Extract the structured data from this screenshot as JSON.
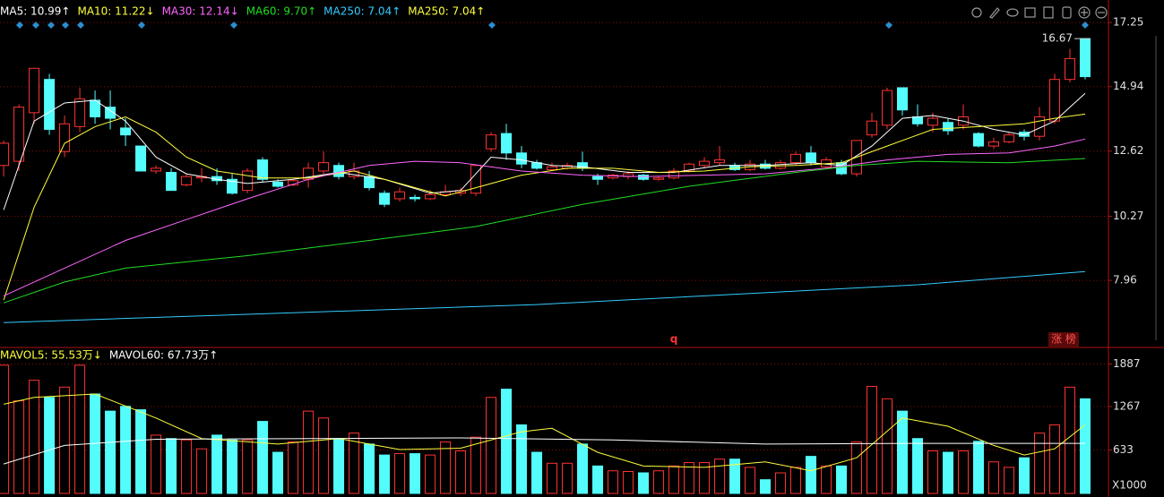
{
  "chart_data": [
    {
      "type": "candlestick",
      "up_color": "#ff3232",
      "down_color": "#54fcfc",
      "grid": true,
      "xlim": [
        -0.24,
        72.53
      ],
      "ylim": [
        5.64,
        17.48
      ],
      "yticks": [
        17.25,
        14.94,
        12.62,
        10.27,
        7.96
      ],
      "open": [
        12.1,
        12.25,
        14.0,
        15.2,
        12.6,
        13.5,
        14.45,
        14.2,
        13.45,
        12.8,
        11.9,
        11.85,
        11.4,
        11.65,
        11.7,
        11.6,
        11.2,
        12.3,
        11.5,
        11.4,
        11.6,
        11.9,
        12.1,
        11.7,
        11.7,
        11.1,
        10.9,
        10.95,
        10.9,
        11.05,
        11.1,
        11.1,
        12.7,
        13.25,
        12.55,
        12.2,
        11.95,
        12.0,
        12.2,
        11.7,
        11.65,
        11.7,
        11.75,
        11.6,
        11.65,
        11.9,
        12.1,
        12.2,
        12.1,
        11.95,
        12.15,
        12.0,
        12.2,
        12.55,
        12.05,
        12.2,
        11.8,
        13.2,
        13.55,
        14.9,
        13.85,
        13.55,
        13.65,
        13.55,
        13.25,
        12.8,
        12.95,
        13.3,
        13.15,
        13.7,
        15.2,
        16.67
      ],
      "high": [
        13.0,
        14.3,
        15.6,
        15.4,
        13.9,
        14.9,
        14.8,
        14.8,
        13.8,
        12.8,
        12.1,
        12.0,
        11.8,
        12.0,
        12.0,
        11.8,
        12.0,
        12.4,
        11.6,
        11.6,
        12.2,
        12.6,
        12.2,
        12.2,
        11.9,
        11.2,
        11.3,
        11.05,
        11.2,
        11.4,
        11.3,
        12.1,
        13.3,
        13.6,
        12.8,
        12.3,
        12.2,
        12.2,
        12.6,
        11.8,
        11.8,
        11.9,
        11.8,
        11.7,
        12.0,
        12.2,
        12.4,
        12.8,
        12.2,
        12.3,
        12.3,
        12.3,
        12.6,
        12.8,
        12.4,
        12.3,
        13.0,
        14.0,
        14.9,
        14.9,
        14.3,
        14.0,
        13.8,
        14.3,
        13.3,
        13.1,
        13.3,
        13.4,
        14.2,
        15.4,
        16.3,
        16.67
      ],
      "low": [
        11.7,
        11.9,
        13.6,
        13.2,
        12.4,
        13.3,
        13.6,
        13.4,
        12.8,
        11.9,
        11.8,
        11.2,
        11.35,
        11.5,
        11.4,
        11.05,
        11.1,
        11.5,
        11.3,
        11.35,
        11.3,
        11.8,
        11.6,
        11.6,
        11.2,
        10.6,
        10.8,
        10.8,
        10.85,
        11.0,
        11.0,
        11.0,
        12.6,
        12.3,
        12.0,
        11.95,
        11.9,
        11.95,
        11.9,
        11.4,
        11.6,
        11.6,
        11.55,
        11.55,
        11.6,
        11.85,
        12.0,
        12.1,
        11.9,
        11.9,
        11.95,
        11.95,
        12.1,
        12.1,
        12.0,
        11.75,
        11.7,
        13.1,
        13.4,
        13.9,
        13.5,
        13.3,
        13.2,
        13.4,
        12.75,
        12.7,
        12.9,
        13.0,
        13.0,
        13.6,
        15.1,
        15.2
      ],
      "close": [
        12.9,
        14.2,
        15.6,
        13.4,
        13.6,
        14.5,
        13.85,
        13.8,
        13.2,
        11.9,
        12.0,
        11.2,
        11.7,
        11.7,
        11.55,
        11.1,
        11.9,
        11.6,
        11.35,
        11.55,
        12.0,
        12.2,
        11.7,
        11.9,
        11.3,
        10.7,
        11.15,
        10.9,
        11.05,
        11.15,
        11.2,
        12.1,
        13.2,
        12.55,
        12.15,
        12.0,
        12.05,
        12.1,
        12.0,
        11.6,
        11.75,
        11.8,
        11.6,
        11.65,
        11.9,
        12.15,
        12.25,
        12.3,
        11.95,
        12.15,
        12.0,
        12.2,
        12.5,
        12.2,
        12.3,
        11.8,
        13.0,
        13.7,
        14.8,
        14.1,
        13.6,
        13.8,
        13.35,
        13.85,
        12.8,
        12.95,
        13.2,
        13.15,
        13.85,
        15.2,
        15.95,
        15.3
      ],
      "series": [
        {
          "name": "MA5: 10.99↑",
          "color": "#ffffff",
          "x": [
            0,
            2,
            4,
            6,
            8,
            10,
            12,
            14,
            16,
            19,
            22,
            25,
            28,
            30,
            32,
            34,
            36,
            38,
            41,
            44,
            47,
            50,
            53,
            55,
            57,
            59,
            61,
            63,
            65,
            67,
            69,
            71
          ],
          "values": [
            10.5,
            13.7,
            14.35,
            14.45,
            13.7,
            12.4,
            11.8,
            11.6,
            11.45,
            11.6,
            11.85,
            11.6,
            11.1,
            11.2,
            12.4,
            12.3,
            12.1,
            12.05,
            11.85,
            11.85,
            12.1,
            12.1,
            12.2,
            12.1,
            12.8,
            13.8,
            13.9,
            13.7,
            13.4,
            13.2,
            13.7,
            14.7
          ]
        },
        {
          "name": "MA10: 11.22↓",
          "color": "#ffff3c",
          "x": [
            0,
            2,
            4,
            6,
            8,
            10,
            12,
            14,
            17,
            20,
            23,
            26,
            29,
            31,
            34,
            37,
            40,
            43,
            46,
            49,
            52,
            55,
            58,
            61,
            64,
            67,
            69,
            71
          ],
          "values": [
            7.25,
            10.6,
            12.9,
            13.5,
            13.85,
            13.3,
            12.4,
            11.9,
            11.65,
            11.65,
            11.9,
            11.45,
            11.0,
            11.3,
            11.75,
            12.0,
            12.0,
            11.85,
            11.9,
            12.05,
            12.1,
            12.2,
            12.8,
            13.4,
            13.5,
            13.6,
            13.8,
            13.95
          ]
        },
        {
          "name": "MA30: 12.14↓",
          "color": "#ff66ff",
          "x": [
            0,
            4,
            8,
            12,
            16,
            20,
            24,
            27,
            30,
            34,
            38,
            42,
            46,
            50,
            54,
            58,
            62,
            66,
            69,
            71
          ],
          "values": [
            7.4,
            8.4,
            9.4,
            10.15,
            10.9,
            11.6,
            12.1,
            12.25,
            12.2,
            11.9,
            11.75,
            11.7,
            11.75,
            11.8,
            12.0,
            12.3,
            12.5,
            12.55,
            12.8,
            13.05
          ]
        },
        {
          "name": "MA60: 9.70↑",
          "color": "#22dd22",
          "x": [
            0,
            4,
            8,
            16,
            24,
            31,
            38,
            45,
            52,
            56,
            60,
            66,
            71
          ],
          "values": [
            7.15,
            7.9,
            8.4,
            8.85,
            9.4,
            9.9,
            10.7,
            11.35,
            11.85,
            12.1,
            12.25,
            12.2,
            12.35
          ]
        },
        {
          "name": "MA250: 7.04↑",
          "color": "#33ccff",
          "x": [
            0,
            35,
            60,
            71
          ],
          "values": [
            6.44,
            7.09,
            7.8,
            8.28
          ]
        },
        {
          "name": "MA250: 7.04↑",
          "color": "#ffff3c"
        }
      ],
      "annotations": [
        "q",
        "涨 榜"
      ]
    },
    {
      "type": "bar",
      "up_color": "#ff3232",
      "down_color": "#54fcfc",
      "grid": true,
      "xlim": [
        -0.24,
        72.53
      ],
      "ylim": [
        0,
        2011
      ],
      "yticks": [
        1887,
        1267,
        633
      ],
      "unit_label": "X1000",
      "values": [
        1870,
        1350,
        1650,
        1400,
        1550,
        1870,
        1450,
        1200,
        1270,
        1220,
        850,
        800,
        780,
        650,
        850,
        780,
        780,
        1050,
        600,
        750,
        1200,
        1100,
        800,
        880,
        720,
        560,
        580,
        580,
        560,
        750,
        620,
        820,
        1400,
        1520,
        1000,
        600,
        440,
        440,
        720,
        400,
        330,
        320,
        300,
        330,
        400,
        450,
        450,
        500,
        500,
        380,
        200,
        300,
        380,
        540,
        400,
        400,
        750,
        1560,
        1380,
        1200,
        800,
        620,
        600,
        620,
        760,
        460,
        380,
        520,
        880,
        1000,
        1550,
        1380
      ],
      "series": [
        {
          "name": "MAVOL5: 55.53万↓",
          "color": "#ffff3c",
          "x": [
            0,
            2,
            6,
            10,
            13,
            18,
            22,
            26,
            30,
            34,
            36,
            39,
            42,
            46,
            50,
            53,
            56,
            59,
            62,
            65,
            67,
            69,
            71
          ],
          "values": [
            1300,
            1400,
            1450,
            1100,
            800,
            720,
            800,
            640,
            660,
            900,
            950,
            600,
            400,
            380,
            460,
            330,
            520,
            1100,
            980,
            700,
            560,
            650,
            1000
          ]
        },
        {
          "name": "MAVOL60: 67.73万↑",
          "color": "#ffffff",
          "x": [
            0,
            4,
            10,
            30,
            40,
            50,
            60,
            71
          ],
          "values": [
            430,
            700,
            790,
            810,
            780,
            720,
            730,
            730
          ]
        }
      ]
    }
  ]
}
